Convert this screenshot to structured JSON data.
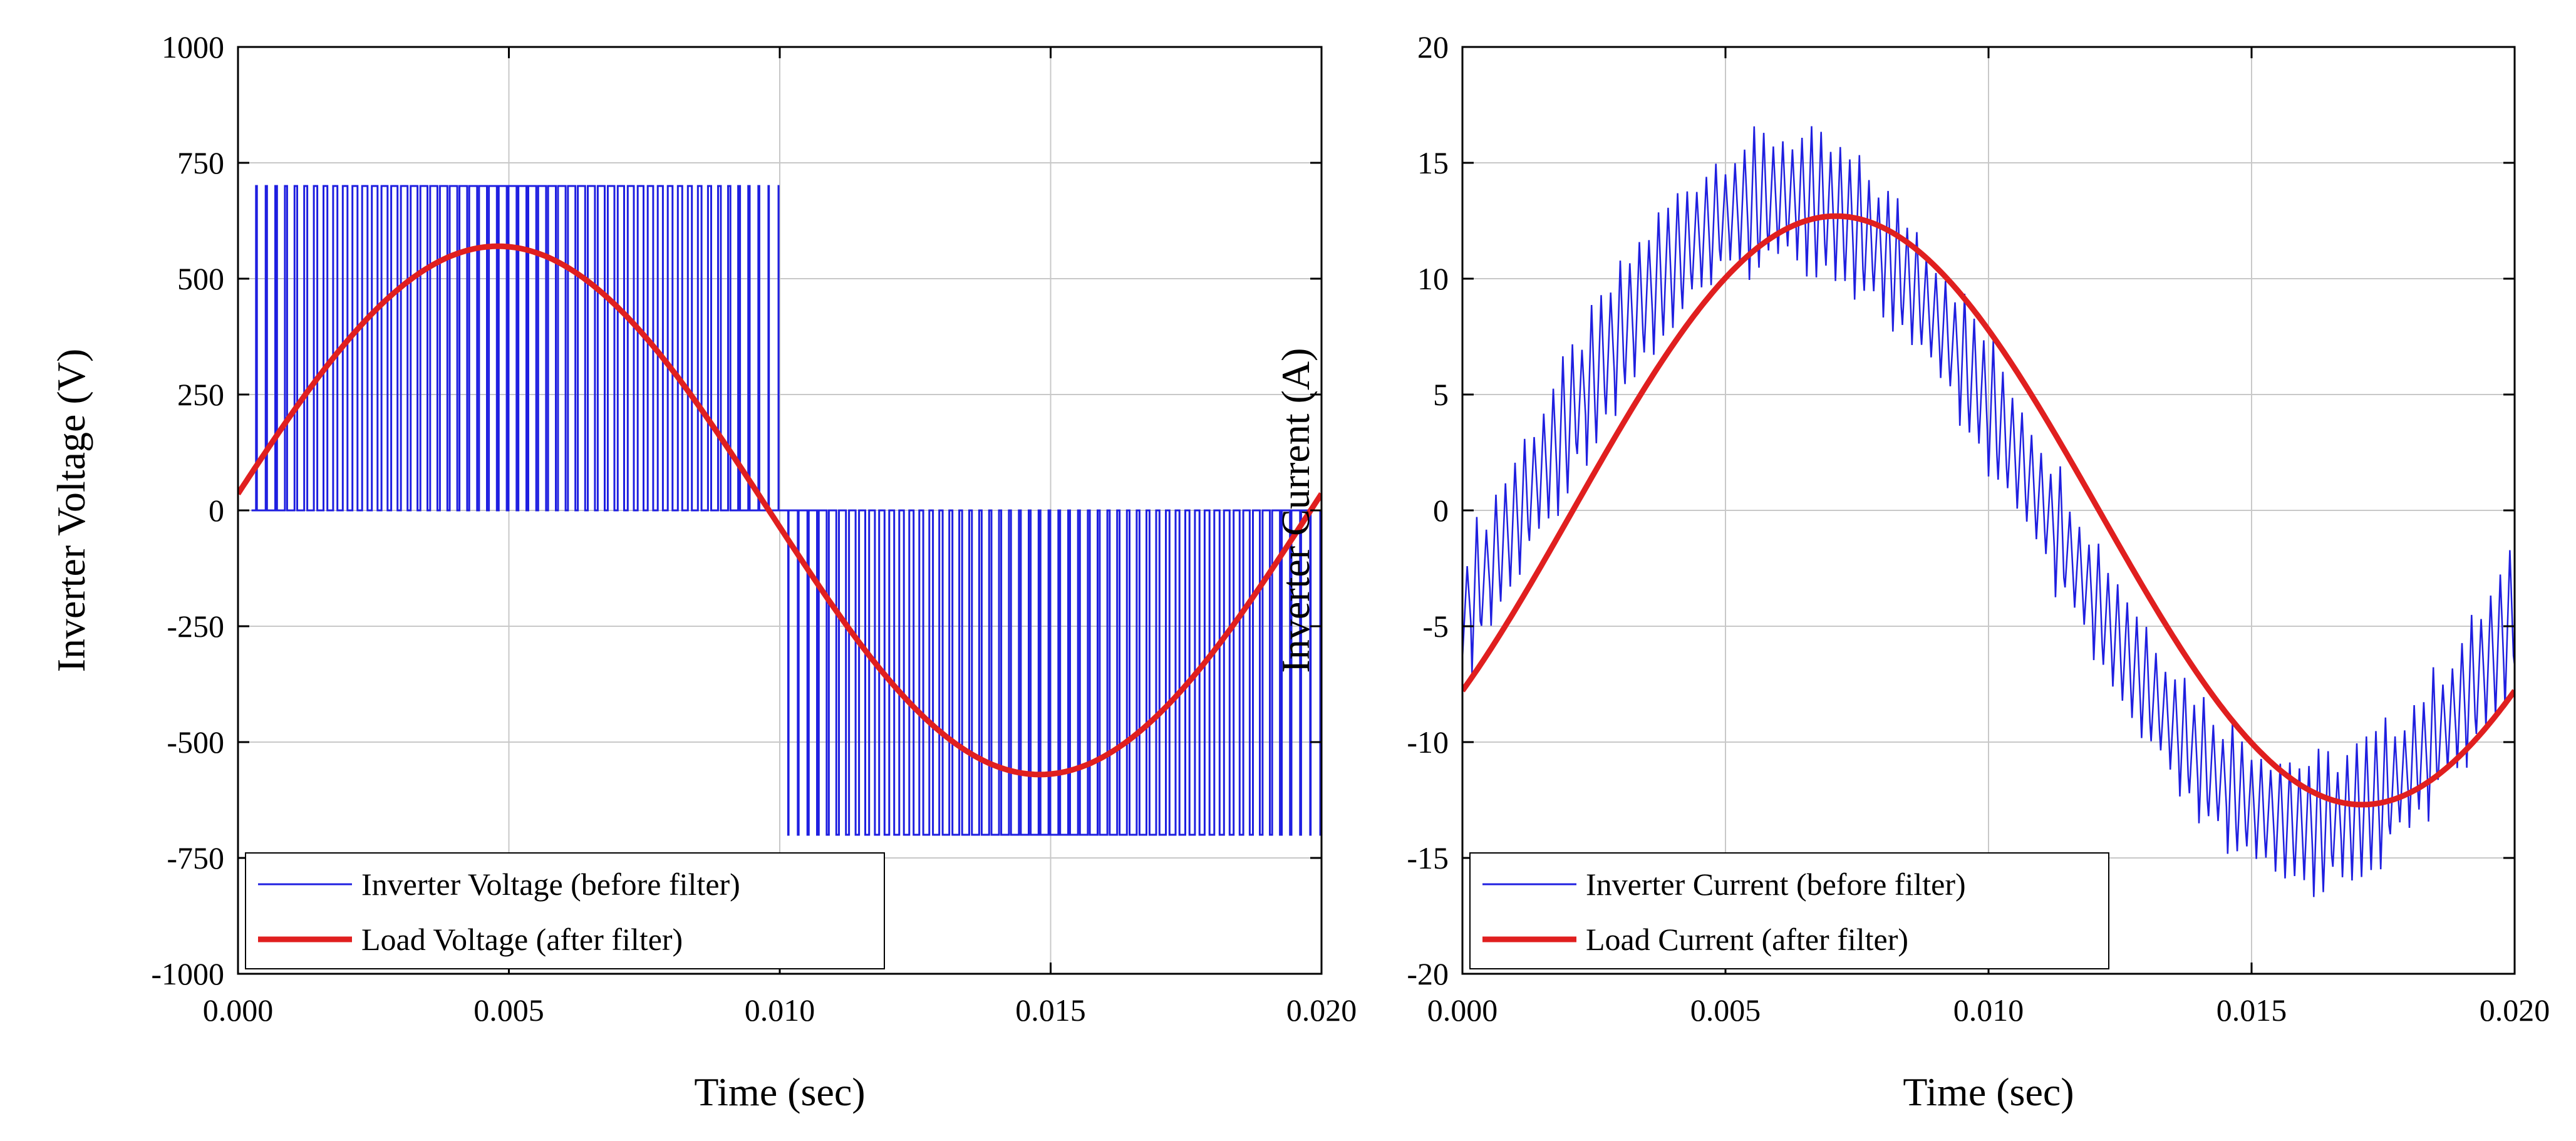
{
  "chart_data": [
    {
      "type": "line",
      "xlabel": "Time (sec)",
      "ylabel": "Inverter Voltage (V)",
      "xlim": [
        0,
        0.02
      ],
      "ylim": [
        -1000,
        1000
      ],
      "xticks": [
        0,
        0.005,
        0.01,
        0.015,
        0.02
      ],
      "xtick_labels": [
        "0.000",
        "0.005",
        "0.010",
        "0.015",
        "0.020"
      ],
      "yticks": [
        -1000,
        -750,
        -500,
        -250,
        0,
        250,
        500,
        750,
        1000
      ],
      "ytick_labels": [
        "-1000",
        "-750",
        "-500",
        "-250",
        "0",
        "250",
        "500",
        "750",
        "1000"
      ],
      "grid": true,
      "legend_position": "bottom-left",
      "series": [
        {
          "name": "Inverter Voltage (before filter)",
          "color": "#1f1fe0",
          "kind": "unipolar_pwm",
          "dc_level": 700,
          "carrier_cycles": 110,
          "modulation_peak": 570,
          "phase_offset_sec": 0.00025
        },
        {
          "name": "Load Voltage (after filter)",
          "color": "#e01f1f",
          "kind": "sinusoid",
          "amplitude": 570,
          "frequency_hz": 50,
          "phase_offset_sec": -0.0002
        }
      ]
    },
    {
      "type": "line",
      "xlabel": "Time (sec)",
      "ylabel": "Inverter Current (A)",
      "xlim": [
        0,
        0.02
      ],
      "ylim": [
        -20,
        20
      ],
      "xticks": [
        0,
        0.005,
        0.01,
        0.015,
        0.02
      ],
      "xtick_labels": [
        "0.000",
        "0.005",
        "0.010",
        "0.015",
        "0.020"
      ],
      "yticks": [
        -20,
        -15,
        -10,
        -5,
        0,
        5,
        10,
        15,
        20
      ],
      "ytick_labels": [
        "-20",
        "-15",
        "-10",
        "-5",
        "0",
        "5",
        "10",
        "15",
        "20"
      ],
      "grid": true,
      "legend_position": "bottom-left",
      "series": [
        {
          "name": "Inverter Current (before filter)",
          "color": "#1f1fe0",
          "kind": "sinusoid_with_ripple",
          "amplitude": 13.5,
          "frequency_hz": 50,
          "phase_offset_sec": 0.0011,
          "ripple_amplitude": 3.0,
          "ripple_cycles": 110
        },
        {
          "name": "Load Current (after filter)",
          "color": "#e01f1f",
          "kind": "sinusoid",
          "amplitude": 12.7,
          "frequency_hz": 50,
          "phase_offset_sec": 0.0021
        }
      ]
    }
  ]
}
